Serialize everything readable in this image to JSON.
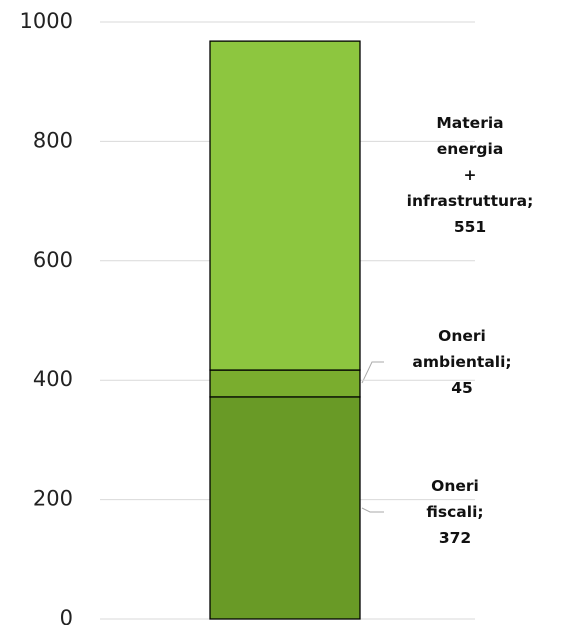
{
  "chart_data": {
    "type": "stacked_bar",
    "categories": [
      null
    ],
    "series": [
      {
        "color": "#699a26",
        "values": [
          372
        ],
        "value_labels": [
          "Oneri fiscali;\n372"
        ]
      },
      {
        "color": "#7aad2e",
        "values": [
          45
        ],
        "value_labels": [
          "Oneri\nambientali;\n45"
        ]
      },
      {
        "color": "#8dc63f",
        "values": [
          551
        ],
        "value_labels": [
          "Materia energia\n+ infrastruttura;\n551"
        ]
      }
    ],
    "ylim": [
      0,
      1000
    ],
    "yticks": [
      0,
      200,
      400,
      600,
      800,
      1000
    ],
    "grid": true
  }
}
